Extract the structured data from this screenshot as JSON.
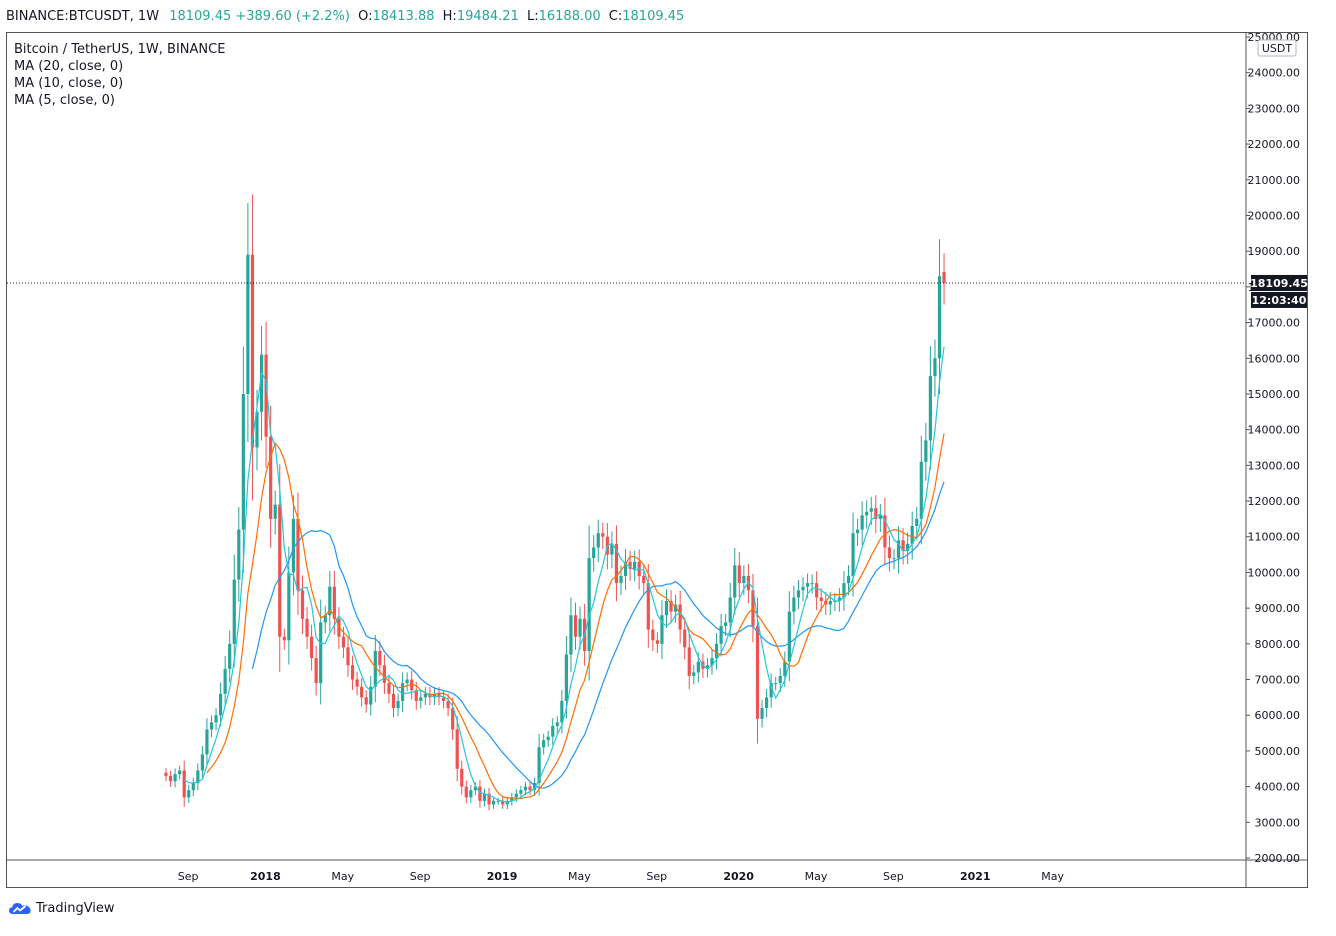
{
  "header": {
    "symbol": "BINANCE:BTCUSDT, 1W",
    "last": "18109.45",
    "change": "+389.60 (+2.2%)",
    "o_label": "O:",
    "o_value": "18413.88",
    "h_label": "H:",
    "h_value": "19484.21",
    "l_label": "L:",
    "l_value": "16188.00",
    "c_label": "C:",
    "c_value": "18109.45"
  },
  "legend": {
    "title": "Bitcoin / TetherUS, 1W, BINANCE",
    "ma20": "MA (20, close, 0)",
    "ma10": "MA (10, close, 0)",
    "ma5": "MA (5, close, 0)"
  },
  "footer": {
    "brand": "TradingView"
  },
  "colors": {
    "up": "#26a69a",
    "down": "#ef5350",
    "ma20": "#2196f3",
    "ma10": "#ff6d00",
    "ma5": "#26c6da",
    "price_tag": "#ef5350",
    "timer_tag": "#131722"
  },
  "chart_data": {
    "type": "candlestick",
    "title": "Bitcoin / TetherUS, 1W, BINANCE",
    "currency": "USDT",
    "ylim": [
      2000,
      25000
    ],
    "y_ticks": [
      "2000.00",
      "3000.00",
      "4000.00",
      "5000.00",
      "6000.00",
      "7000.00",
      "8000.00",
      "9000.00",
      "10000.00",
      "11000.00",
      "12000.00",
      "13000.00",
      "14000.00",
      "15000.00",
      "16000.00",
      "17000.00",
      "18000.00",
      "19000.00",
      "20000.00",
      "21000.00",
      "22000.00",
      "23000.00",
      "24000.00",
      "25000.00"
    ],
    "x_ticks": [
      {
        "label": "Sep",
        "week": 2
      },
      {
        "label": "2018",
        "week": 19
      },
      {
        "label": "May",
        "week": 36
      },
      {
        "label": "Sep",
        "week": 53
      },
      {
        "label": "2019",
        "week": 71
      },
      {
        "label": "May",
        "week": 88
      },
      {
        "label": "Sep",
        "week": 105
      },
      {
        "label": "2020",
        "week": 123
      },
      {
        "label": "May",
        "week": 140
      },
      {
        "label": "Sep",
        "week": 157
      },
      {
        "label": "2021",
        "week": 175
      },
      {
        "label": "May",
        "week": 192
      }
    ],
    "last_price": "18109.45",
    "countdown": "12:03:40",
    "closes": [
      4300,
      4150,
      4350,
      4450,
      3700,
      3900,
      4100,
      4450,
      4900,
      5600,
      5800,
      6000,
      6600,
      7300,
      8000,
      9800,
      11200,
      15000,
      18900,
      13500,
      14500,
      16100,
      13800,
      11500,
      11900,
      8200,
      8100,
      10000,
      11500,
      9500,
      8700,
      8200,
      7600,
      6900,
      8600,
      8800,
      9600,
      8700,
      8200,
      7900,
      7400,
      7000,
      6800,
      6500,
      6300,
      6800,
      7800,
      7400,
      6900,
      6600,
      6200,
      6400,
      6900,
      7000,
      6700,
      6400,
      6500,
      6600,
      6500,
      6600,
      6500,
      6400,
      6200,
      5600,
      4500,
      4000,
      3700,
      3900,
      4000,
      3600,
      3800,
      3500,
      3600,
      3600,
      3500,
      3600,
      3700,
      3800,
      3900,
      4000,
      3900,
      4100,
      5100,
      5300,
      5400,
      5700,
      5800,
      6400,
      7700,
      8800,
      8200,
      8700,
      7800,
      10400,
      10700,
      11100,
      11000,
      10500,
      10800,
      9700,
      9900,
      10300,
      10100,
      10300,
      9900,
      9700,
      8400,
      8100,
      8000,
      8800,
      9200,
      8900,
      9100,
      8400,
      7900,
      7100,
      7200,
      7500,
      7300,
      7400,
      7600,
      8000,
      8500,
      8600,
      9300,
      10200,
      9700,
      9900,
      9500,
      8500,
      5900,
      6200,
      6500,
      6900,
      6900,
      7100,
      7500,
      8900,
      9300,
      9500,
      9600,
      9700,
      9700,
      9300,
      9200,
      9100,
      9200,
      9200,
      9300,
      9700,
      9900,
      11100,
      11200,
      11600,
      11700,
      11800,
      11500,
      11600,
      10700,
      10400,
      10400,
      10900,
      10600,
      10800,
      11300,
      11500,
      13100,
      13700,
      15500,
      16000,
      18300,
      18110
    ],
    "series": [
      {
        "name": "MA (20, close, 0)"
      },
      {
        "name": "MA (10, close, 0)"
      },
      {
        "name": "MA (5, close, 0)"
      }
    ]
  }
}
